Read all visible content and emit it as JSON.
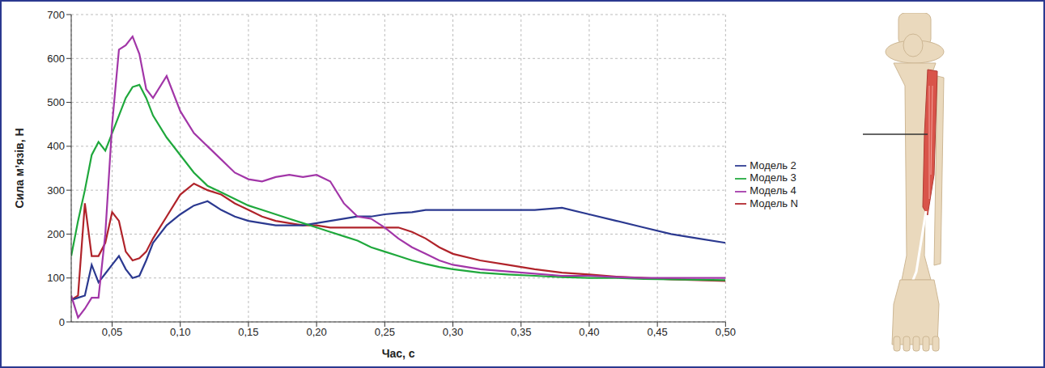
{
  "chart_data": {
    "type": "line",
    "x_label": "Час, с",
    "y_label": "Сила м’язів, Н",
    "x": [
      0.02,
      0.025,
      0.03,
      0.035,
      0.04,
      0.045,
      0.05,
      0.055,
      0.06,
      0.065,
      0.07,
      0.075,
      0.08,
      0.09,
      0.1,
      0.11,
      0.12,
      0.13,
      0.14,
      0.15,
      0.16,
      0.17,
      0.18,
      0.19,
      0.2,
      0.21,
      0.22,
      0.23,
      0.24,
      0.25,
      0.26,
      0.27,
      0.28,
      0.29,
      0.3,
      0.32,
      0.34,
      0.36,
      0.38,
      0.4,
      0.42,
      0.44,
      0.46,
      0.48,
      0.5
    ],
    "series": [
      {
        "name": "Модель N",
        "color": "#b0232a",
        "values": [
          50,
          60,
          270,
          150,
          150,
          180,
          250,
          230,
          160,
          140,
          145,
          160,
          190,
          240,
          290,
          315,
          300,
          290,
          270,
          255,
          240,
          230,
          225,
          220,
          220,
          215,
          215,
          215,
          215,
          215,
          215,
          205,
          190,
          170,
          155,
          140,
          130,
          120,
          112,
          108,
          103,
          100,
          97,
          95,
          93
        ]
      },
      {
        "name": "Модель 2",
        "color": "#2b3990",
        "values": [
          50,
          55,
          60,
          130,
          90,
          110,
          130,
          150,
          120,
          100,
          105,
          140,
          180,
          220,
          245,
          265,
          275,
          255,
          240,
          230,
          225,
          220,
          220,
          220,
          225,
          230,
          235,
          240,
          240,
          245,
          248,
          250,
          255,
          255,
          255,
          255,
          255,
          255,
          260,
          245,
          230,
          215,
          200,
          190,
          180
        ]
      },
      {
        "name": "Модель 3",
        "color": "#1fa83c",
        "values": [
          150,
          230,
          300,
          380,
          410,
          390,
          430,
          470,
          510,
          535,
          540,
          510,
          470,
          420,
          380,
          340,
          310,
          295,
          280,
          265,
          255,
          245,
          235,
          225,
          215,
          205,
          195,
          185,
          170,
          160,
          150,
          140,
          132,
          125,
          120,
          112,
          108,
          105,
          102,
          100,
          100,
          98,
          97,
          96,
          95
        ]
      },
      {
        "name": "Модель 4",
        "color": "#a236a8",
        "values": [
          60,
          10,
          30,
          55,
          55,
          200,
          450,
          620,
          630,
          650,
          610,
          530,
          510,
          560,
          480,
          430,
          400,
          370,
          340,
          325,
          320,
          330,
          335,
          330,
          335,
          320,
          270,
          240,
          235,
          215,
          190,
          170,
          155,
          140,
          130,
          120,
          115,
          110,
          105,
          105,
          102,
          100,
          100,
          100,
          100
        ]
      }
    ],
    "xlim": [
      0.02,
      0.5
    ],
    "xticks": [
      {
        "value": 0.05,
        "label": "0,05"
      },
      {
        "value": 0.1,
        "label": "0,10"
      },
      {
        "value": 0.15,
        "label": "0,15"
      },
      {
        "value": 0.2,
        "label": "0,20"
      },
      {
        "value": 0.25,
        "label": "0,25"
      },
      {
        "value": 0.3,
        "label": "0,30"
      },
      {
        "value": 0.35,
        "label": "0,35"
      },
      {
        "value": 0.4,
        "label": "0,40"
      },
      {
        "value": 0.45,
        "label": "0,45"
      },
      {
        "value": 0.5,
        "label": "0,50"
      }
    ],
    "ylim": [
      0,
      700
    ],
    "yticks": [
      0,
      100,
      200,
      300,
      400,
      500,
      600,
      700
    ],
    "grid": true,
    "legend": "right"
  }
}
